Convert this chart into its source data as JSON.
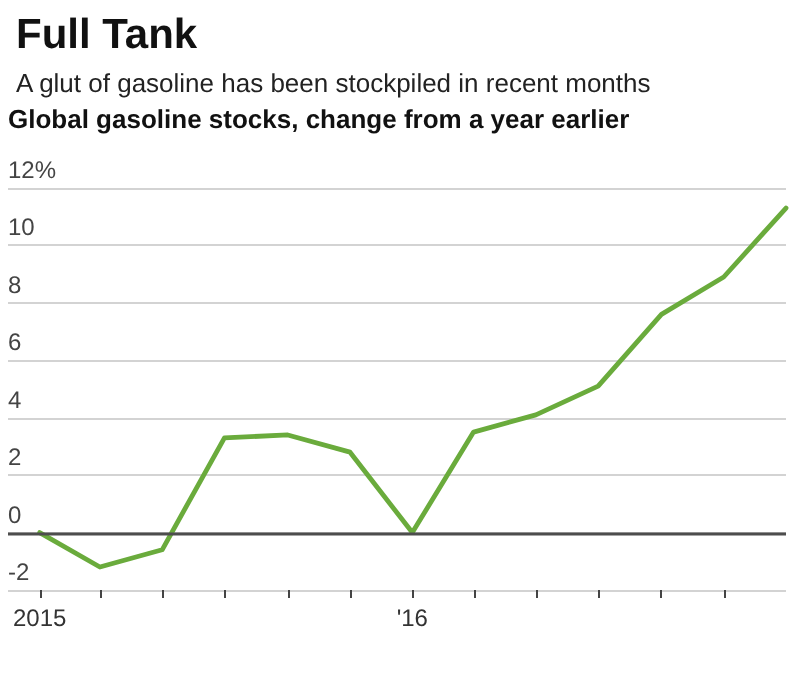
{
  "chart_data": {
    "type": "line",
    "title": "Full Tank",
    "subtitle": "A glut of gasoline has been stockpiled in recent months",
    "ylabel": "Global gasoline stocks, change from a year earlier",
    "x": [
      "2015-01",
      "2015-03",
      "2015-05",
      "2015-07",
      "2015-09",
      "2015-11",
      "2016-01",
      "2016-03",
      "2016-05",
      "2016-07",
      "2016-09",
      "2016-11",
      "2017-01"
    ],
    "values": [
      0,
      -1.2,
      -0.6,
      3.3,
      3.4,
      2.8,
      0,
      3.5,
      4.1,
      5.1,
      7.6,
      8.9,
      11.3
    ],
    "color": "#6aab3c",
    "xlim": [
      "2014-12",
      "2017-01"
    ],
    "xticks": [
      {
        "value": "2015-01",
        "label": "2015"
      },
      {
        "value": "2015-03",
        "label": null
      },
      {
        "value": "2015-05",
        "label": null
      },
      {
        "value": "2015-07",
        "label": null
      },
      {
        "value": "2015-09",
        "label": null
      },
      {
        "value": "2015-11",
        "label": null
      },
      {
        "value": "2016-01",
        "label": "'16"
      },
      {
        "value": "2016-03",
        "label": null
      },
      {
        "value": "2016-05",
        "label": null
      },
      {
        "value": "2016-07",
        "label": null
      },
      {
        "value": "2016-09",
        "label": null
      },
      {
        "value": "2016-11",
        "label": null
      }
    ],
    "ylim": [
      -2,
      12
    ],
    "yticks": [
      -2,
      0,
      2,
      4,
      6,
      8,
      10,
      {
        "value": 12,
        "label": "12%"
      }
    ],
    "grid": "y",
    "marker": "none",
    "line_style": "solid",
    "ref_lines": [
      {
        "axis": "y",
        "value": 0,
        "color": "#4d4d4d"
      }
    ]
  }
}
